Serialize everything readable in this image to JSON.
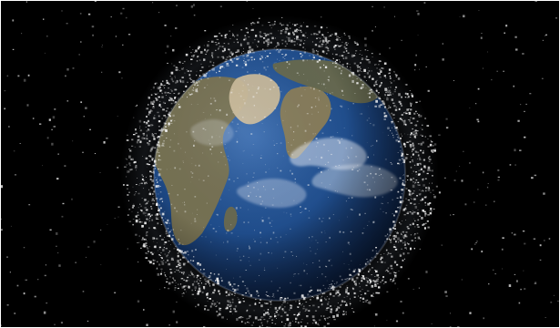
{
  "scene": {
    "colors": {
      "space": "#000000",
      "ocean": "#1f4c8a",
      "ocean_dark": "#0b1f44",
      "land": "#7a7350",
      "land_light": "#c9b99a",
      "cloud": "#eef3fb",
      "debris": "#f2f2f2",
      "border": "#ffffff"
    }
  }
}
